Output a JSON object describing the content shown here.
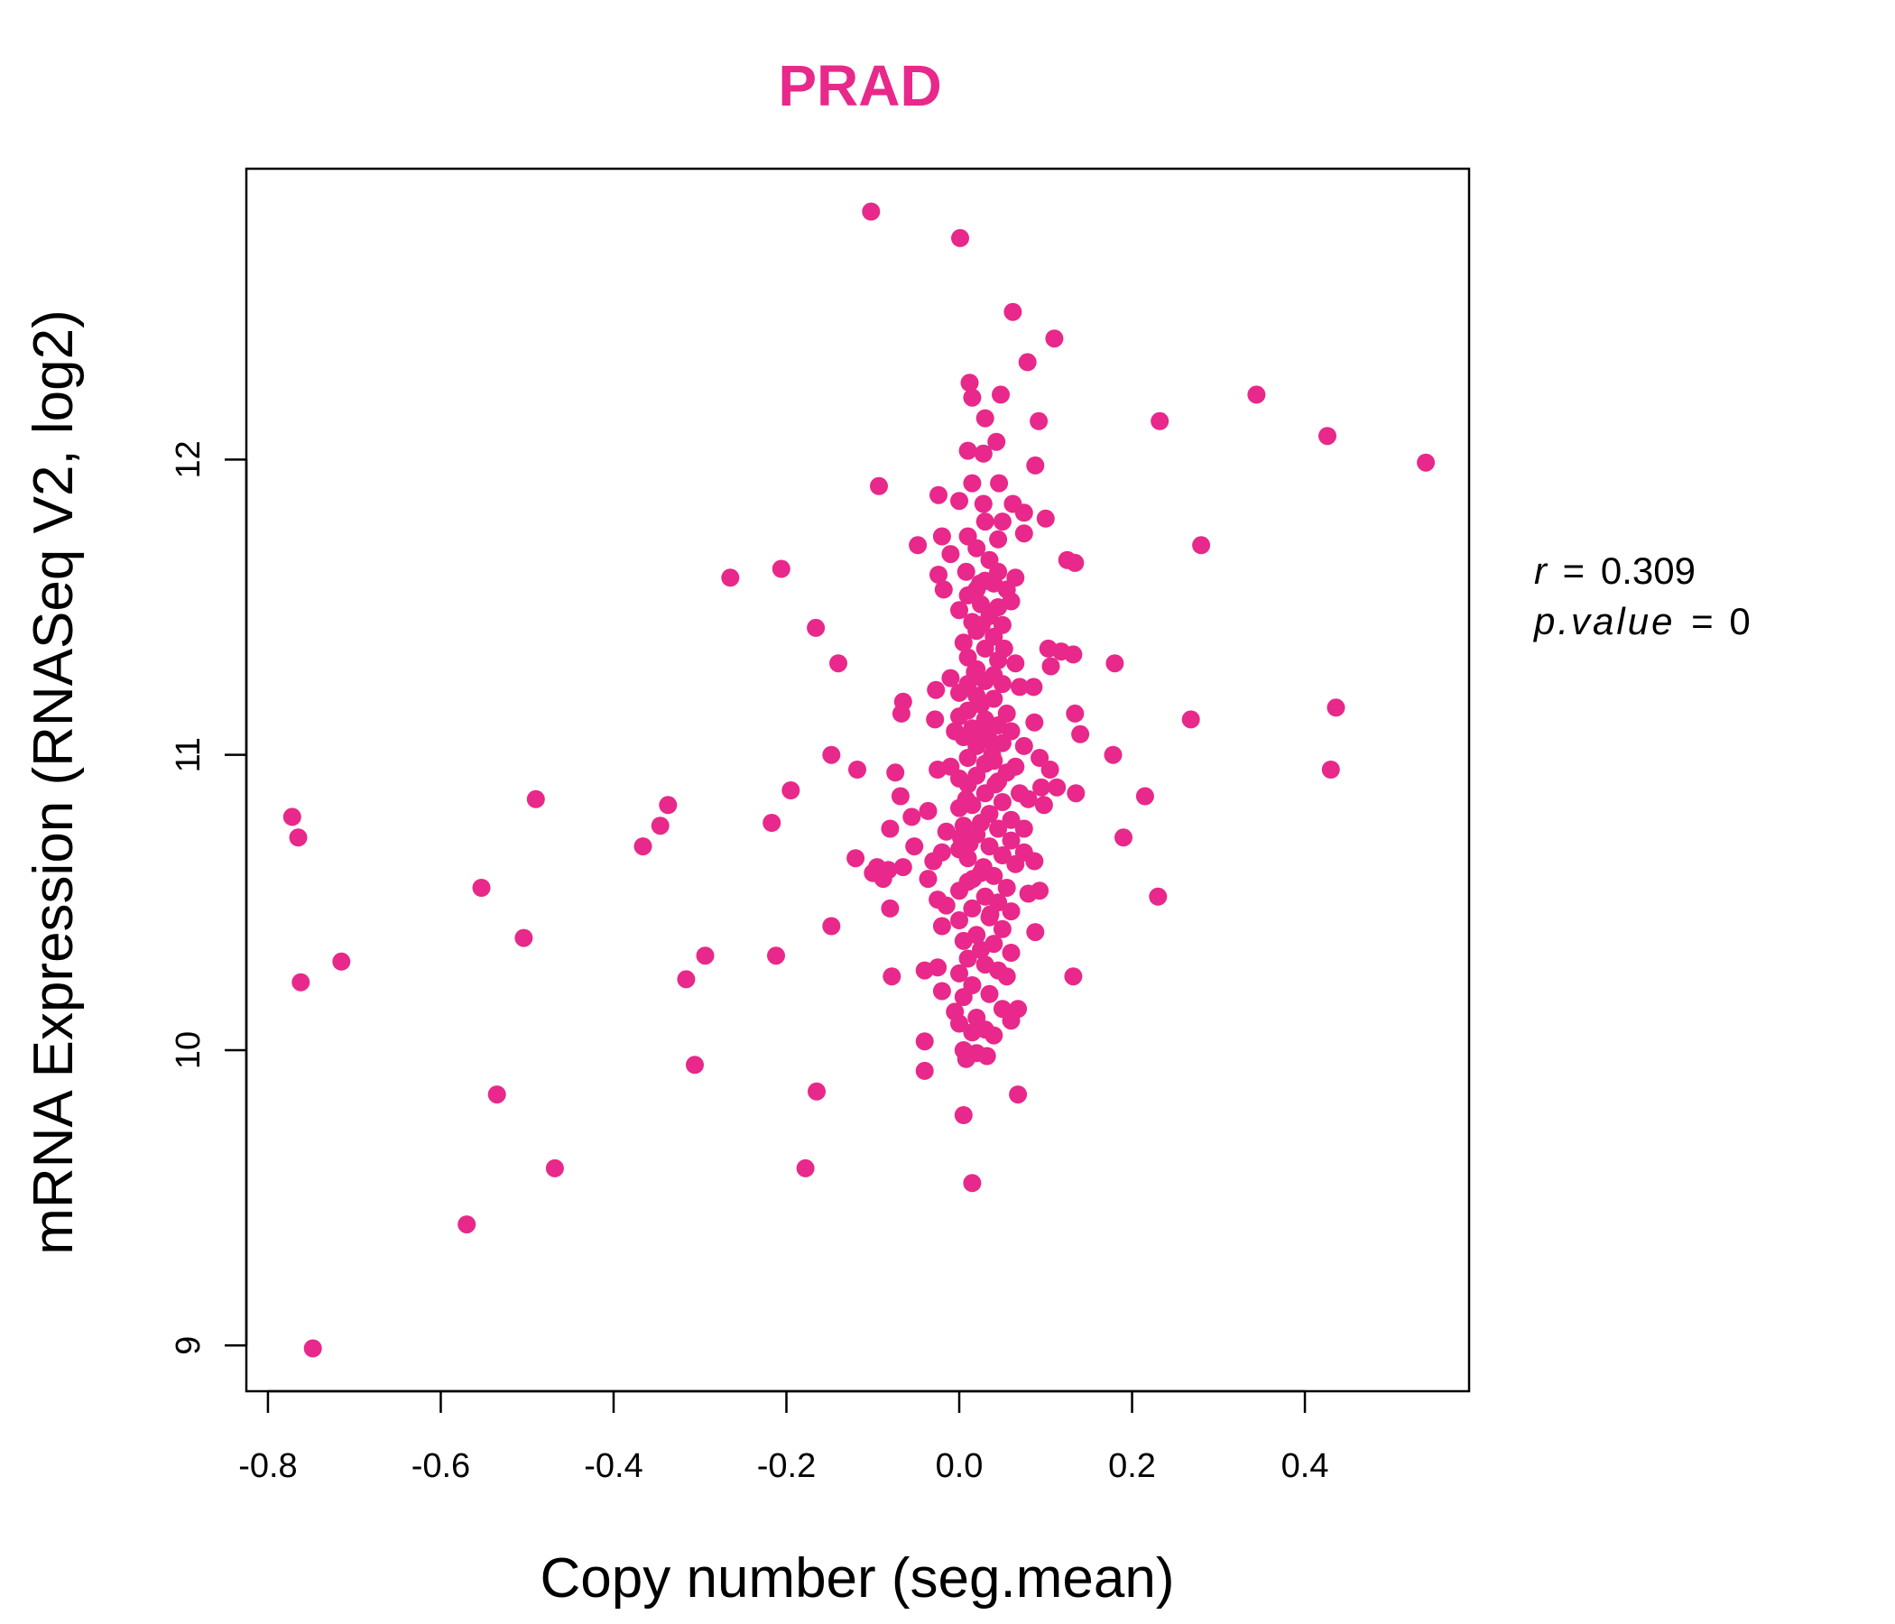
{
  "chart_data": {
    "type": "scatter",
    "title": "PRAD",
    "xlabel": "Copy number (seg.mean)",
    "ylabel": "mRNA Expression (RNASeq V2, log2)",
    "xlim": [
      -0.825,
      0.59
    ],
    "ylim": [
      8.845,
      12.985
    ],
    "xticks": [
      -0.8,
      -0.6,
      -0.4,
      -0.2,
      0.0,
      0.2,
      0.4
    ],
    "xtick_labels": [
      "-0.8",
      "-0.6",
      "-0.4",
      "-0.2",
      "0.0",
      "0.2",
      "0.4"
    ],
    "yticks": [
      9,
      10,
      11,
      12
    ],
    "ytick_labels": [
      "9",
      "10",
      "11",
      "12"
    ],
    "color": "#E8288A",
    "annotation": {
      "r_label": "r",
      "r_value": "0.309",
      "p_label": "p.value",
      "p_value": "0"
    },
    "series": [
      {
        "name": "samples",
        "points": [
          [
            -0.102,
            12.84
          ],
          [
            0.001,
            12.75
          ],
          [
            0.062,
            12.5
          ],
          [
            0.11,
            12.41
          ],
          [
            0.079,
            12.33
          ],
          [
            0.012,
            12.26
          ],
          [
            0.048,
            12.22
          ],
          [
            0.015,
            12.21
          ],
          [
            0.03,
            12.14
          ],
          [
            0.092,
            12.13
          ],
          [
            0.043,
            12.06
          ],
          [
            0.01,
            12.03
          ],
          [
            0.028,
            12.02
          ],
          [
            0.088,
            11.98
          ],
          [
            0.015,
            11.92
          ],
          [
            0.046,
            11.92
          ],
          [
            -0.093,
            11.91
          ],
          [
            -0.024,
            11.88
          ],
          [
            0.0,
            11.86
          ],
          [
            0.028,
            11.85
          ],
          [
            0.062,
            11.85
          ],
          [
            0.075,
            11.82
          ],
          [
            0.05,
            11.79
          ],
          [
            0.03,
            11.79
          ],
          [
            0.1,
            11.8
          ],
          [
            0.075,
            11.75
          ],
          [
            0.01,
            11.74
          ],
          [
            -0.02,
            11.74
          ],
          [
            0.045,
            11.73
          ],
          [
            -0.048,
            11.71
          ],
          [
            0.02,
            11.7
          ],
          [
            -0.01,
            11.68
          ],
          [
            0.035,
            11.66
          ],
          [
            0.125,
            11.66
          ],
          [
            0.134,
            11.65
          ],
          [
            -0.206,
            11.63
          ],
          [
            0.008,
            11.62
          ],
          [
            0.045,
            11.62
          ],
          [
            -0.024,
            11.61
          ],
          [
            0.065,
            11.6
          ],
          [
            -0.265,
            11.6
          ],
          [
            0.03,
            11.59
          ],
          [
            0.04,
            11.58
          ],
          [
            0.055,
            11.56
          ],
          [
            0.02,
            11.56
          ],
          [
            -0.018,
            11.56
          ],
          [
            0.01,
            11.54
          ],
          [
            0.06,
            11.52
          ],
          [
            0.025,
            11.51
          ],
          [
            0.045,
            11.5
          ],
          [
            0.0,
            11.49
          ],
          [
            0.035,
            11.47
          ],
          [
            0.015,
            11.45
          ],
          [
            0.05,
            11.44
          ],
          [
            -0.166,
            11.43
          ],
          [
            0.02,
            11.42
          ],
          [
            0.04,
            11.4
          ],
          [
            0.005,
            11.38
          ],
          [
            0.03,
            11.36
          ],
          [
            0.103,
            11.36
          ],
          [
            0.118,
            11.35
          ],
          [
            0.132,
            11.34
          ],
          [
            0.01,
            11.33
          ],
          [
            0.045,
            11.32
          ],
          [
            -0.14,
            11.31
          ],
          [
            0.18,
            11.31
          ],
          [
            0.065,
            11.31
          ],
          [
            0.106,
            11.3
          ],
          [
            0.02,
            11.29
          ],
          [
            0.04,
            11.27
          ],
          [
            -0.01,
            11.26
          ],
          [
            0.03,
            11.25
          ],
          [
            0.01,
            11.24
          ],
          [
            0.05,
            11.24
          ],
          [
            0.07,
            11.23
          ],
          [
            0.086,
            11.23
          ],
          [
            -0.027,
            11.22
          ],
          [
            0.0,
            11.21
          ],
          [
            0.02,
            11.2
          ],
          [
            0.04,
            11.19
          ],
          [
            -0.065,
            11.18
          ],
          [
            0.025,
            11.17
          ],
          [
            0.436,
            11.16
          ],
          [
            0.01,
            11.15
          ],
          [
            0.055,
            11.14
          ],
          [
            -0.067,
            11.14
          ],
          [
            0.134,
            11.14
          ],
          [
            0.0,
            11.13
          ],
          [
            0.03,
            11.12
          ],
          [
            0.268,
            11.12
          ],
          [
            -0.028,
            11.12
          ],
          [
            0.087,
            11.11
          ],
          [
            0.045,
            11.1
          ],
          [
            0.015,
            11.09
          ],
          [
            0.06,
            11.08
          ],
          [
            0.14,
            11.07
          ],
          [
            0.005,
            11.06
          ],
          [
            0.035,
            11.05
          ],
          [
            0.05,
            11.04
          ],
          [
            0.02,
            11.03
          ],
          [
            0.075,
            11.03
          ],
          [
            -0.148,
            11.0
          ],
          [
            0.178,
            11.0
          ],
          [
            0.093,
            10.99
          ],
          [
            0.01,
            10.99
          ],
          [
            0.04,
            10.98
          ],
          [
            0.03,
            10.97
          ],
          [
            -0.01,
            10.96
          ],
          [
            0.065,
            10.96
          ],
          [
            0.105,
            10.95
          ],
          [
            -0.118,
            10.95
          ],
          [
            0.43,
            10.95
          ],
          [
            -0.074,
            10.94
          ],
          [
            -0.025,
            10.95
          ],
          [
            0.055,
            10.94
          ],
          [
            0.02,
            10.93
          ],
          [
            0.0,
            10.92
          ],
          [
            0.045,
            10.91
          ],
          [
            0.01,
            10.9
          ],
          [
            0.095,
            10.89
          ],
          [
            0.113,
            10.89
          ],
          [
            0.135,
            10.87
          ],
          [
            -0.195,
            10.88
          ],
          [
            0.07,
            10.87
          ],
          [
            0.03,
            10.87
          ],
          [
            0.215,
            10.86
          ],
          [
            -0.068,
            10.86
          ],
          [
            -0.49,
            10.85
          ],
          [
            0.08,
            10.85
          ],
          [
            0.05,
            10.84
          ],
          [
            -0.337,
            10.83
          ],
          [
            0.015,
            10.83
          ],
          [
            0.098,
            10.83
          ],
          [
            0.0,
            10.82
          ],
          [
            -0.036,
            10.81
          ],
          [
            0.035,
            10.8
          ],
          [
            -0.055,
            10.79
          ],
          [
            -0.772,
            10.79
          ],
          [
            0.06,
            10.78
          ],
          [
            0.025,
            10.77
          ],
          [
            -0.217,
            10.77
          ],
          [
            0.005,
            10.76
          ],
          [
            -0.346,
            10.76
          ],
          [
            0.045,
            10.75
          ],
          [
            -0.08,
            10.75
          ],
          [
            0.075,
            10.75
          ],
          [
            -0.015,
            10.74
          ],
          [
            0.02,
            10.73
          ],
          [
            -0.765,
            10.72
          ],
          [
            0.19,
            10.72
          ],
          [
            0.06,
            10.71
          ],
          [
            -0.052,
            10.69
          ],
          [
            -0.366,
            10.69
          ],
          [
            0.035,
            10.69
          ],
          [
            0.0,
            10.68
          ],
          [
            0.075,
            10.67
          ],
          [
            -0.02,
            10.67
          ],
          [
            0.05,
            10.66
          ],
          [
            0.01,
            10.65
          ],
          [
            -0.12,
            10.65
          ],
          [
            0.087,
            10.64
          ],
          [
            -0.03,
            10.64
          ],
          [
            0.065,
            10.63
          ],
          [
            -0.065,
            10.62
          ],
          [
            -0.095,
            10.62
          ],
          [
            -0.082,
            10.61
          ],
          [
            0.025,
            10.6
          ],
          [
            -0.1,
            10.6
          ],
          [
            0.04,
            10.59
          ],
          [
            -0.036,
            10.58
          ],
          [
            -0.088,
            10.58
          ],
          [
            0.01,
            10.57
          ],
          [
            -0.553,
            10.55
          ],
          [
            0.055,
            10.55
          ],
          [
            0.093,
            10.54
          ],
          [
            0.0,
            10.54
          ],
          [
            0.23,
            10.52
          ],
          [
            0.08,
            10.53
          ],
          [
            0.03,
            10.52
          ],
          [
            -0.025,
            10.51
          ],
          [
            0.045,
            10.5
          ],
          [
            -0.015,
            10.49
          ],
          [
            0.015,
            10.48
          ],
          [
            -0.08,
            10.48
          ],
          [
            0.06,
            10.47
          ],
          [
            0.035,
            10.45
          ],
          [
            0.0,
            10.44
          ],
          [
            -0.148,
            10.42
          ],
          [
            -0.02,
            10.42
          ],
          [
            0.05,
            10.41
          ],
          [
            0.088,
            10.4
          ],
          [
            0.02,
            10.39
          ],
          [
            -0.504,
            10.38
          ],
          [
            0.005,
            10.37
          ],
          [
            0.04,
            10.36
          ],
          [
            0.025,
            10.34
          ],
          [
            0.06,
            10.33
          ],
          [
            -0.294,
            10.32
          ],
          [
            -0.212,
            10.32
          ],
          [
            0.01,
            10.31
          ],
          [
            -0.715,
            10.3
          ],
          [
            0.03,
            10.29
          ],
          [
            -0.025,
            10.28
          ],
          [
            0.045,
            10.27
          ],
          [
            0.0,
            10.26
          ],
          [
            -0.04,
            10.27
          ],
          [
            0.132,
            10.25
          ],
          [
            -0.078,
            10.25
          ],
          [
            0.055,
            10.25
          ],
          [
            -0.316,
            10.24
          ],
          [
            -0.762,
            10.23
          ],
          [
            0.015,
            10.22
          ],
          [
            -0.02,
            10.2
          ],
          [
            0.035,
            10.19
          ],
          [
            0.005,
            10.18
          ],
          [
            0.068,
            10.14
          ],
          [
            0.05,
            10.14
          ],
          [
            -0.005,
            10.13
          ],
          [
            0.02,
            10.11
          ],
          [
            0.06,
            10.1
          ],
          [
            0.0,
            10.09
          ],
          [
            0.03,
            10.07
          ],
          [
            0.015,
            10.06
          ],
          [
            0.04,
            10.05
          ],
          [
            -0.04,
            10.03
          ],
          [
            0.005,
            10.0
          ],
          [
            0.02,
            9.99
          ],
          [
            0.032,
            9.98
          ],
          [
            0.008,
            9.97
          ],
          [
            -0.306,
            9.95
          ],
          [
            -0.04,
            9.93
          ],
          [
            -0.165,
            9.86
          ],
          [
            -0.535,
            9.85
          ],
          [
            0.068,
            9.85
          ],
          [
            0.005,
            9.78
          ],
          [
            -0.178,
            9.6
          ],
          [
            -0.468,
            9.6
          ],
          [
            0.015,
            9.55
          ],
          [
            -0.57,
            9.41
          ],
          [
            -0.748,
            8.99
          ],
          [
            0.344,
            12.22
          ],
          [
            0.232,
            12.13
          ],
          [
            0.426,
            12.08
          ],
          [
            0.54,
            11.99
          ],
          [
            0.28,
            11.71
          ],
          [
            0.022,
            11.05
          ],
          [
            0.038,
            11.0
          ],
          [
            0.012,
            10.7
          ],
          [
            0.028,
            10.62
          ],
          [
            0.018,
            11.28
          ],
          [
            0.033,
            11.1
          ],
          [
            0.008,
            10.85
          ],
          [
            0.042,
            10.9
          ],
          [
            0.026,
            11.44
          ],
          [
            0.016,
            10.58
          ],
          [
            -0.005,
            11.08
          ],
          [
            0.052,
            11.36
          ],
          [
            0.002,
            10.72
          ],
          [
            0.036,
            10.46
          ],
          [
            0.024,
            11.58
          ]
        ]
      }
    ]
  }
}
